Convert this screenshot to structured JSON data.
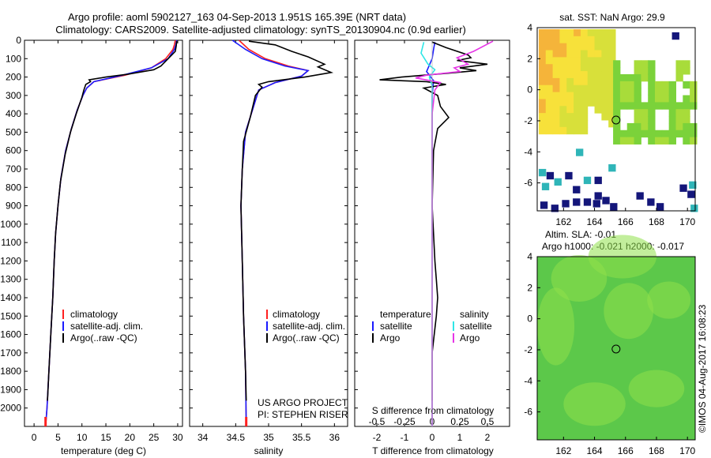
{
  "title_line1": "Argo profile: aoml 5902127_163 04-Sep-2013 1.951S 165.39E (NRT data)",
  "title_line2": "Climatology: CARS2009. Satellite-adjusted climatology: synTS_20130904.nc (0.9d earlier)",
  "credit": "©IMOS 04-Aug-2017 16:08:23",
  "colors": {
    "clim": "#ff2020",
    "sat_t": "#1a1aff",
    "argo": "#000000",
    "sat_s": "#2fe6e6",
    "argo_s": "#e635e6",
    "map_yellow": "#f7e13a",
    "map_orange": "#f5b43a",
    "map_green": "#7bd23a",
    "map_navy": "#14167a",
    "map_teal": "#2fb5b8",
    "sla_green": "#5cc84a",
    "sla_light": "#8fe04a"
  },
  "chart_data": [
    {
      "type": "line",
      "name": "temperature-profile",
      "xlabel": "temperature (deg C)",
      "xlim": [
        -2,
        31
      ],
      "ylim": [
        2100,
        0
      ],
      "xticks": [
        0,
        5,
        10,
        15,
        20,
        25,
        30
      ],
      "yticks": [
        0,
        100,
        200,
        300,
        400,
        500,
        600,
        700,
        800,
        900,
        1000,
        1100,
        1200,
        1300,
        1400,
        1500,
        1600,
        1700,
        1800,
        1900,
        2000
      ],
      "legend": [
        "climatology",
        "satellite-adj. clim.",
        "Argo(..raw -QC)"
      ],
      "series": [
        {
          "name": "climatology",
          "color": "clim",
          "points": [
            [
              29.5,
              0
            ],
            [
              29.3,
              25
            ],
            [
              29.0,
              50
            ],
            [
              27.5,
              100
            ],
            [
              24.5,
              150
            ],
            [
              19,
              190
            ],
            [
              12.5,
              225
            ],
            [
              11,
              260
            ],
            [
              10.2,
              300
            ],
            [
              9.0,
              380
            ],
            [
              7.8,
              480
            ],
            [
              6.6,
              600
            ],
            [
              5.6,
              750
            ],
            [
              5.0,
              900
            ],
            [
              4.5,
              1050
            ],
            [
              4.2,
              1200
            ],
            [
              3.9,
              1400
            ],
            [
              3.5,
              1600
            ],
            [
              3.1,
              1800
            ],
            [
              2.7,
              2000
            ],
            [
              2.4,
              2100
            ]
          ]
        },
        {
          "name": "satellite-adj. clim.",
          "color": "sat_t",
          "points": [
            [
              29.8,
              0
            ],
            [
              29.6,
              25
            ],
            [
              29.3,
              50
            ],
            [
              28.0,
              100
            ],
            [
              24.5,
              150
            ],
            [
              18.5,
              190
            ],
            [
              12.5,
              225
            ],
            [
              11,
              260
            ],
            [
              10.2,
              300
            ],
            [
              9.0,
              380
            ],
            [
              7.8,
              480
            ],
            [
              6.6,
              600
            ],
            [
              5.6,
              750
            ],
            [
              5.0,
              900
            ],
            [
              4.5,
              1050
            ],
            [
              4.2,
              1200
            ],
            [
              3.9,
              1400
            ],
            [
              3.5,
              1600
            ],
            [
              3.1,
              1800
            ],
            [
              2.7,
              2000
            ],
            [
              2.4,
              2100
            ]
          ]
        },
        {
          "name": "Argo(..raw -QC)",
          "color": "argo",
          "points": [
            [
              29.8,
              5
            ],
            [
              29.7,
              30
            ],
            [
              29.5,
              60
            ],
            [
              28,
              100
            ],
            [
              26.5,
              140
            ],
            [
              25,
              160
            ],
            [
              19.5,
              185
            ],
            [
              15,
              200
            ],
            [
              11.5,
              215
            ],
            [
              11.8,
              225
            ],
            [
              10.8,
              240
            ],
            [
              10.4,
              270
            ],
            [
              10,
              310
            ],
            [
              8.8,
              400
            ],
            [
              7.6,
              500
            ],
            [
              6.5,
              620
            ],
            [
              5.5,
              770
            ],
            [
              5.0,
              900
            ],
            [
              4.5,
              1050
            ],
            [
              4.2,
              1200
            ],
            [
              3.9,
              1400
            ],
            [
              3.5,
              1600
            ],
            [
              3.1,
              1800
            ],
            [
              2.8,
              1960
            ]
          ]
        }
      ]
    },
    {
      "type": "line",
      "name": "salinity-profile",
      "xlabel": "salinity",
      "xlim": [
        33.8,
        36.2
      ],
      "ylim": [
        2100,
        0
      ],
      "xticks": [
        34,
        34.5,
        35,
        35.5,
        36
      ],
      "legend": [
        "climatology",
        "satellite-adj. clim.",
        "Argo(..raw -QC)"
      ],
      "annotations": [
        "US ARGO PROJECT",
        "PI: STEPHEN RISER"
      ],
      "series": [
        {
          "name": "climatology",
          "color": "clim",
          "points": [
            [
              34.55,
              0
            ],
            [
              34.7,
              50
            ],
            [
              34.95,
              100
            ],
            [
              35.3,
              140
            ],
            [
              35.6,
              165
            ],
            [
              35.5,
              195
            ],
            [
              35.1,
              230
            ],
            [
              34.85,
              270
            ],
            [
              34.78,
              350
            ],
            [
              34.65,
              500
            ],
            [
              34.6,
              700
            ],
            [
              34.58,
              900
            ],
            [
              34.6,
              1200
            ],
            [
              34.62,
              1500
            ],
            [
              34.65,
              1800
            ],
            [
              34.66,
              2100
            ]
          ]
        },
        {
          "name": "satellite-adj. clim.",
          "color": "sat_t",
          "points": [
            [
              34.45,
              0
            ],
            [
              34.65,
              50
            ],
            [
              34.9,
              100
            ],
            [
              35.25,
              140
            ],
            [
              35.6,
              165
            ],
            [
              35.5,
              195
            ],
            [
              35.1,
              230
            ],
            [
              34.85,
              270
            ],
            [
              34.78,
              350
            ],
            [
              34.65,
              500
            ],
            [
              34.6,
              700
            ],
            [
              34.58,
              900
            ],
            [
              34.6,
              1200
            ],
            [
              34.62,
              1500
            ],
            [
              34.65,
              1800
            ],
            [
              34.66,
              2100
            ]
          ]
        },
        {
          "name": "Argo(..raw -QC)",
          "color": "argo",
          "points": [
            [
              34.7,
              5
            ],
            [
              35.1,
              25
            ],
            [
              35.35,
              60
            ],
            [
              35.6,
              90
            ],
            [
              35.85,
              130
            ],
            [
              35.75,
              145
            ],
            [
              35.95,
              175
            ],
            [
              35.55,
              200
            ],
            [
              35.0,
              225
            ],
            [
              34.85,
              240
            ],
            [
              34.9,
              255
            ],
            [
              34.8,
              300
            ],
            [
              34.72,
              420
            ],
            [
              34.62,
              550
            ],
            [
              34.6,
              700
            ],
            [
              34.58,
              900
            ],
            [
              34.6,
              1200
            ],
            [
              34.62,
              1500
            ],
            [
              34.65,
              1800
            ],
            [
              34.66,
              1960
            ]
          ]
        }
      ]
    },
    {
      "type": "line",
      "name": "difference-profile",
      "xlabel": "T difference from climatology",
      "xlabel_top": "S difference from climatology",
      "xlim": [
        -2.8,
        2.8
      ],
      "ylim": [
        2100,
        0
      ],
      "xticks": [
        -2,
        -1,
        0,
        1,
        2
      ],
      "xticks_top": [
        [
          "-0.5",
          -2
        ],
        [
          "-0.25",
          -1
        ],
        [
          "0",
          0
        ],
        [
          "0.25",
          1
        ],
        [
          "0.5",
          2
        ]
      ],
      "legend_temperature_title": "temperature",
      "legend_salinity_title": "salinity",
      "legend_temperature": [
        "satellite",
        "Argo"
      ],
      "legend_salinity": [
        "satellite",
        "Argo"
      ],
      "series": [
        {
          "name": "T satellite",
          "color": "sat_t",
          "points": [
            [
              0.1,
              10
            ],
            [
              0.05,
              50
            ],
            [
              0,
              100
            ],
            [
              -0.2,
              170
            ],
            [
              0.05,
              220
            ],
            [
              0,
              300
            ],
            [
              0,
              500
            ],
            [
              0,
              2100
            ]
          ]
        },
        {
          "name": "T Argo",
          "color": "argo",
          "points": [
            [
              0,
              10
            ],
            [
              0.5,
              40
            ],
            [
              1.3,
              80
            ],
            [
              1.4,
              95
            ],
            [
              0.9,
              110
            ],
            [
              2.0,
              130
            ],
            [
              1.0,
              150
            ],
            [
              1.6,
              165
            ],
            [
              0.5,
              180
            ],
            [
              -1.1,
              200
            ],
            [
              -1.9,
              215
            ],
            [
              -0.2,
              225
            ],
            [
              0.5,
              240
            ],
            [
              -0.3,
              260
            ],
            [
              0.2,
              300
            ],
            [
              0.3,
              360
            ],
            [
              0.6,
              420
            ],
            [
              0.2,
              480
            ],
            [
              0.05,
              600
            ],
            [
              0,
              900
            ],
            [
              0.1,
              1200
            ],
            [
              0.15,
              1300
            ],
            [
              0.2,
              1400
            ],
            [
              0.15,
              1500
            ],
            [
              0,
              1700
            ],
            [
              0,
              1960
            ]
          ]
        },
        {
          "name": "S satellite",
          "color": "sat_s",
          "points": [
            [
              -0.3,
              10
            ],
            [
              -0.4,
              70
            ],
            [
              -0.15,
              130
            ],
            [
              0.1,
              160
            ],
            [
              -0.1,
              200
            ],
            [
              0,
              250
            ],
            [
              0,
              400
            ],
            [
              0,
              2100
            ]
          ]
        },
        {
          "name": "S Argo",
          "color": "argo_s",
          "points": [
            [
              2.2,
              5
            ],
            [
              1.5,
              60
            ],
            [
              0.9,
              95
            ],
            [
              1.3,
              130
            ],
            [
              0.8,
              150
            ],
            [
              1.0,
              170
            ],
            [
              -0.2,
              190
            ],
            [
              -0.6,
              205
            ],
            [
              0.3,
              230
            ],
            [
              0.1,
              270
            ],
            [
              0,
              400
            ],
            [
              0,
              2100
            ]
          ]
        }
      ]
    },
    {
      "type": "heatmap",
      "name": "sst-map",
      "title": "sat. SST: NaN Argo: 29.9",
      "xlim": [
        160.3,
        170.5
      ],
      "ylim": [
        -7.8,
        4
      ],
      "xticks": [
        162,
        164,
        166,
        168,
        170
      ],
      "yticks": [
        4,
        2,
        0,
        -2,
        -4,
        -6
      ],
      "marker": {
        "lon": 165.39,
        "lat": -1.951
      }
    },
    {
      "type": "heatmap",
      "name": "sla-map",
      "title_line1": "Altim. SLA: -0.01",
      "title_line2": "Argo h1000: -0.021 h2000: -0.017",
      "xlim": [
        160.3,
        170.5
      ],
      "ylim": [
        -7.8,
        4
      ],
      "xticks": [
        162,
        164,
        166,
        168,
        170
      ],
      "yticks": [
        4,
        2,
        0,
        -2,
        -4,
        -6
      ],
      "marker": {
        "lon": 165.39,
        "lat": -1.951
      }
    }
  ]
}
